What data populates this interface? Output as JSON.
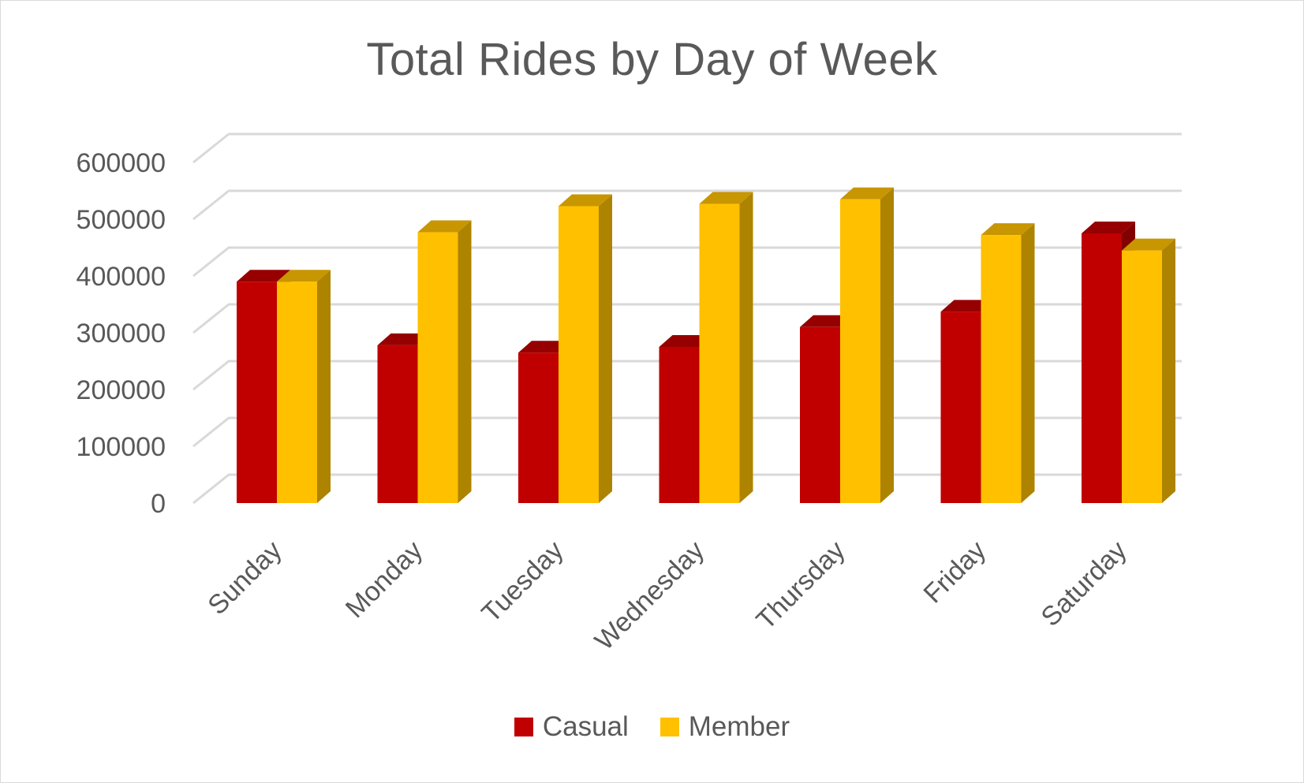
{
  "chart_data": {
    "type": "bar",
    "subtype": "3d-clustered-column",
    "title": "Total Rides by Day of Week",
    "xlabel": "",
    "ylabel": "",
    "categories": [
      "Sunday",
      "Monday",
      "Tuesday",
      "Wednesday",
      "Thursday",
      "Friday",
      "Saturday"
    ],
    "series": [
      {
        "name": "Casual",
        "color": "#c00000",
        "values": [
          390000,
          278000,
          265000,
          275000,
          310000,
          337000,
          475000
        ]
      },
      {
        "name": "Member",
        "color": "#ffc000",
        "values": [
          390000,
          477000,
          523000,
          527000,
          535000,
          472000,
          445000
        ]
      }
    ],
    "yticks": [
      "0",
      "100000",
      "200000",
      "300000",
      "400000",
      "500000",
      "600000"
    ],
    "ylim": [
      0,
      600000
    ],
    "grid": true,
    "legend_position": "bottom"
  }
}
